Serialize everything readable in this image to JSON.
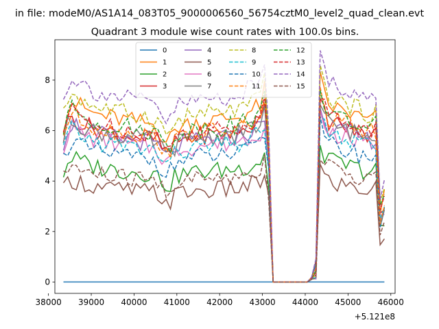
{
  "figure": {
    "suptitle": "in file: modeM0/AS1A14_083T05_9000006560_56754cztM0_level2_quad_clean.evt"
  },
  "chart_data": {
    "type": "line",
    "title": "Quadrant 3 module wise count rates with 100.0s bins.",
    "xlabel": "",
    "ylabel": "",
    "x_offset_label": "+5.121e8",
    "xlim": [
      38150,
      46100
    ],
    "ylim": [
      -0.45,
      9.6
    ],
    "x_ticks": [
      38000,
      39000,
      40000,
      41000,
      42000,
      43000,
      44000,
      45000,
      46000
    ],
    "y_ticks": [
      0,
      2,
      4,
      6,
      8
    ],
    "grid": false,
    "legend": {
      "placement": "top-center",
      "columns": 4
    },
    "x_range": {
      "start": 38350,
      "step": 100,
      "count": 76
    },
    "series": [
      {
        "name": "0",
        "color": "#1f77b4",
        "dash": "solid",
        "base": 0
      },
      {
        "name": "1",
        "color": "#ff7f0e",
        "dash": "solid",
        "base": 6.7
      },
      {
        "name": "2",
        "color": "#2ca02c",
        "dash": "solid",
        "base": 4.6
      },
      {
        "name": "3",
        "color": "#d62728",
        "dash": "solid",
        "base": 6.1
      },
      {
        "name": "4",
        "color": "#9467bd",
        "dash": "solid",
        "base": 5.9
      },
      {
        "name": "5",
        "color": "#8c564b",
        "dash": "solid",
        "base": 3.8
      },
      {
        "name": "6",
        "color": "#e377c2",
        "dash": "solid",
        "base": 5.7
      },
      {
        "name": "7",
        "color": "#7f7f7f",
        "dash": "solid",
        "base": 6.0
      },
      {
        "name": "8",
        "color": "#bcbd22",
        "dash": "dashed",
        "base": 7.0
      },
      {
        "name": "9",
        "color": "#17becf",
        "dash": "dashed",
        "base": 5.6
      },
      {
        "name": "10",
        "color": "#1f77b4",
        "dash": "dashed",
        "base": 5.2
      },
      {
        "name": "11",
        "color": "#ff7f0e",
        "dash": "dashed",
        "base": 6.2
      },
      {
        "name": "12",
        "color": "#2ca02c",
        "dash": "dashed",
        "base": 6.4
      },
      {
        "name": "13",
        "color": "#d62728",
        "dash": "dashed",
        "base": 6.3
      },
      {
        "name": "14",
        "color": "#9467bd",
        "dash": "dashed",
        "base": 7.6
      },
      {
        "name": "15",
        "color": "#8c564b",
        "dash": "dashed",
        "base": 4.3
      }
    ],
    "profile": {
      "description": "relative shape shared by modules: high at start, dip ~41000, rising toward 43000, drop to 0 between 43200 and 44100, spike at 44350, slow decay, drop near 45750",
      "points": [
        [
          38350,
          0.94
        ],
        [
          38500,
          1.08
        ],
        [
          39000,
          1.0
        ],
        [
          39500,
          0.97
        ],
        [
          40000,
          0.95
        ],
        [
          40500,
          0.93
        ],
        [
          40800,
          0.82
        ],
        [
          41000,
          0.92
        ],
        [
          41500,
          0.95
        ],
        [
          42000,
          0.96
        ],
        [
          42500,
          0.98
        ],
        [
          43000,
          1.05
        ],
        [
          43100,
          1.22
        ],
        [
          43250,
          0.0
        ],
        [
          44100,
          0.0
        ],
        [
          44250,
          0.08
        ],
        [
          44350,
          1.2
        ],
        [
          44500,
          1.05
        ],
        [
          45000,
          1.0
        ],
        [
          45500,
          0.95
        ],
        [
          45650,
          0.97
        ],
        [
          45750,
          0.42
        ],
        [
          45850,
          0.5
        ]
      ]
    }
  }
}
